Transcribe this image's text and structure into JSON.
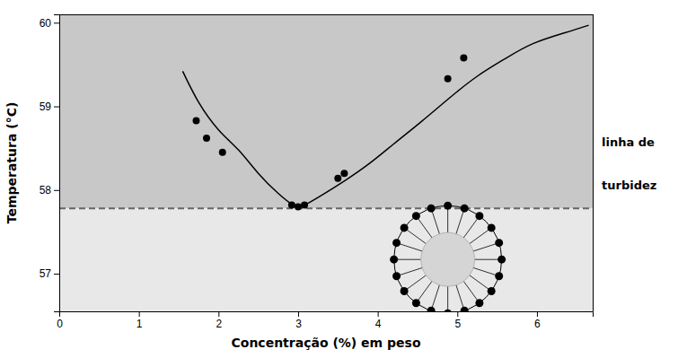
{
  "chart_data": {
    "type": "scatter",
    "xlabel": "Concentração (%) em peso",
    "ylabel": "Temperatura (°C)",
    "x": [
      1.72,
      1.85,
      2.05,
      2.92,
      3.0,
      3.08,
      3.5,
      3.58,
      4.88,
      5.08
    ],
    "values": [
      58.83,
      58.62,
      58.45,
      57.82,
      57.8,
      57.82,
      58.14,
      58.2,
      59.33,
      59.58
    ],
    "color": "#000000",
    "curve": {
      "x": [
        1.55,
        1.75,
        2.0,
        2.25,
        2.5,
        2.75,
        2.92,
        3.0,
        3.1,
        3.3,
        3.6,
        3.9,
        4.2,
        4.55,
        4.9,
        5.25,
        5.6,
        5.95,
        6.35,
        6.65
      ],
      "values": [
        59.42,
        59.05,
        58.72,
        58.48,
        58.2,
        57.96,
        57.83,
        57.8,
        57.83,
        57.94,
        58.12,
        58.32,
        58.55,
        58.82,
        59.1,
        59.36,
        59.57,
        59.75,
        59.88,
        59.97
      ],
      "color": "#000000"
    },
    "reference_line": {
      "value": 57.78,
      "label": [
        "linha de",
        "turbidez"
      ],
      "color": "#666666",
      "line_style": "dashed",
      "color_above": "#c8c8c8",
      "color_below": "#e8e8e8"
    },
    "micelle": {
      "x": 4.88,
      "y": 57.17,
      "spokes": 20,
      "color": "#d5d5d5"
    },
    "xlim": [
      0,
      6.7
    ],
    "ylim": [
      56.55,
      60.1
    ],
    "xticks": [
      0,
      1,
      2,
      3,
      4,
      5,
      6
    ],
    "yticks": [
      57,
      58,
      59,
      60
    ],
    "grid": false
  }
}
